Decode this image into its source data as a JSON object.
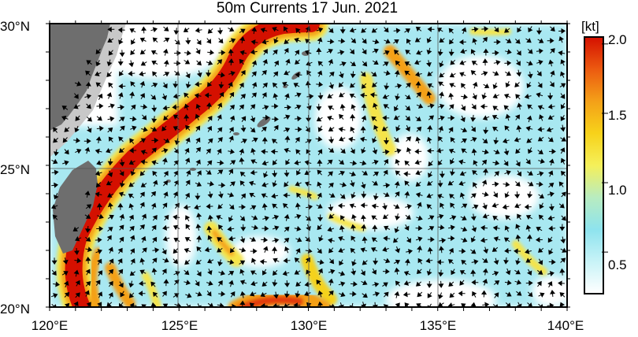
{
  "title": "50m Currents  17 Jun. 2021",
  "colorbar": {
    "unit_label": "[kt]",
    "ticks": [
      "2.0",
      "1.5",
      "1.0",
      "0.5"
    ],
    "tick_values": [
      2.0,
      1.5,
      1.0,
      0.5
    ],
    "range": [
      0.2,
      2.05
    ],
    "stops": [
      "#ffffff",
      "#c8f3f7",
      "#8ee3ee",
      "#b8ecc0",
      "#f5f05a",
      "#f7d21a",
      "#f4a018",
      "#ec5a10",
      "#d41000"
    ]
  },
  "axes": {
    "lat_labels": [
      "30°N",
      "25°N",
      "20°N"
    ],
    "lat_values": [
      30,
      25,
      20
    ],
    "lon_labels": [
      "120°E",
      "125°E",
      "130°E",
      "135°E",
      "140°E"
    ],
    "lon_values": [
      120,
      125,
      130,
      135,
      140
    ],
    "lon_range": [
      120,
      140
    ],
    "lat_range": [
      20,
      30
    ]
  },
  "colors": {
    "land": "#6e6e6e",
    "shelf": "#c8c8c8",
    "kuroshio": "#d41000",
    "arrow": "#000000"
  }
}
